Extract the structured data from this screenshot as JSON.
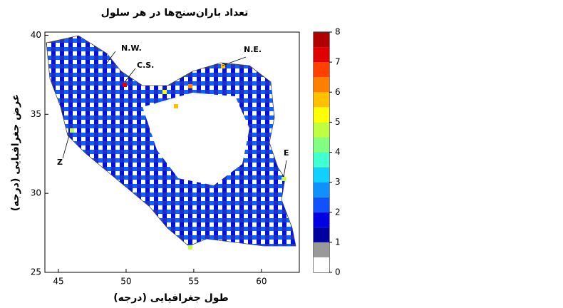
{
  "title": "تعداد باران‌سنج‌ها در هر سلول",
  "x_label": "طول جغرافیایی (درجه)",
  "y_label": "عرض جغرافیایی (درجه)",
  "xlim": [
    44,
    62.8
  ],
  "xticks": [
    45,
    50,
    55,
    60
  ],
  "ylim": [
    25,
    40.2
  ],
  "yticks": [
    25,
    30,
    35,
    40
  ],
  "regions": [
    "N.W.",
    "C.S.",
    "N.E.",
    "E",
    "Z"
  ],
  "colorbar": {
    "lim": [
      0,
      8
    ],
    "ticks": [
      0,
      1,
      2,
      3,
      4,
      5,
      6,
      7,
      8
    ],
    "colors": [
      "#ffffff",
      "#999999",
      "#0000a0",
      "#0000e0",
      "#1050ff",
      "#1090ff",
      "#10d0ff",
      "#40ffd0",
      "#80ff80",
      "#c0ff40",
      "#ffff00",
      "#ffc000",
      "#ff8000",
      "#ff4000",
      "#e00000",
      "#b00000"
    ]
  }
}
